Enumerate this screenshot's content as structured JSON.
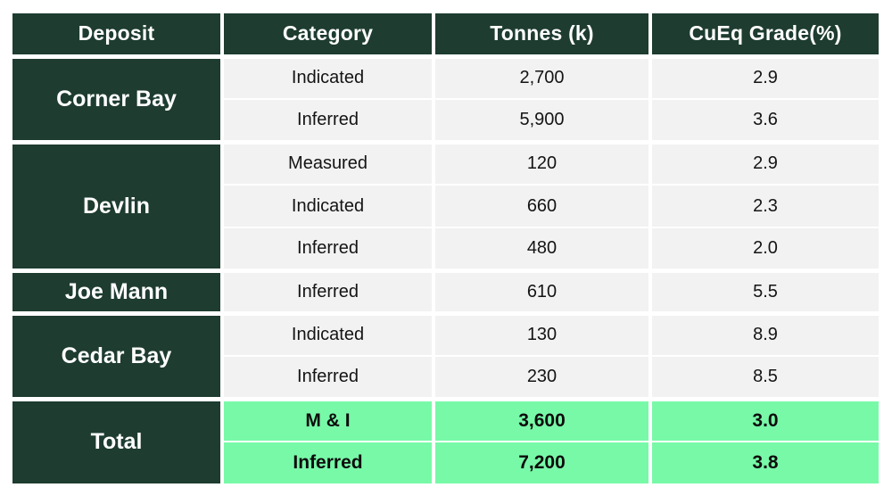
{
  "table": {
    "headers": [
      "Deposit",
      "Category",
      "Tonnes (k)",
      "CuEq Grade(%)"
    ],
    "groups": [
      {
        "deposit": "Corner Bay",
        "total": false,
        "rows": [
          {
            "category": "Indicated",
            "tonnes": "2,700",
            "grade": "2.9"
          },
          {
            "category": "Inferred",
            "tonnes": "5,900",
            "grade": "3.6"
          }
        ]
      },
      {
        "deposit": "Devlin",
        "total": false,
        "rows": [
          {
            "category": "Measured",
            "tonnes": "120",
            "grade": "2.9"
          },
          {
            "category": "Indicated",
            "tonnes": "660",
            "grade": "2.3"
          },
          {
            "category": "Inferred",
            "tonnes": "480",
            "grade": "2.0"
          }
        ]
      },
      {
        "deposit": "Joe Mann",
        "total": false,
        "rows": [
          {
            "category": "Inferred",
            "tonnes": "610",
            "grade": "5.5"
          }
        ]
      },
      {
        "deposit": "Cedar Bay",
        "total": false,
        "rows": [
          {
            "category": "Indicated",
            "tonnes": "130",
            "grade": "8.9"
          },
          {
            "category": "Inferred",
            "tonnes": "230",
            "grade": "8.5"
          }
        ]
      },
      {
        "deposit": "Total",
        "total": true,
        "rows": [
          {
            "category": "M & I",
            "tonnes": "3,600",
            "grade": "3.0"
          },
          {
            "category": "Inferred",
            "tonnes": "7,200",
            "grade": "3.8"
          }
        ]
      }
    ],
    "colors": {
      "dark_green": "#1e3c30",
      "mint_green": "#78f9a8",
      "row_gray": "#f2f2f2",
      "border_white": "#ffffff",
      "header_text": "#ffffff",
      "body_text": "#141414"
    }
  },
  "chart_data": {
    "type": "table",
    "columns": [
      "Deposit",
      "Category",
      "Tonnes (k)",
      "CuEq Grade(%)"
    ],
    "rows": [
      [
        "Corner Bay",
        "Indicated",
        2700,
        2.9
      ],
      [
        "Corner Bay",
        "Inferred",
        5900,
        3.6
      ],
      [
        "Devlin",
        "Measured",
        120,
        2.9
      ],
      [
        "Devlin",
        "Indicated",
        660,
        2.3
      ],
      [
        "Devlin",
        "Inferred",
        480,
        2.0
      ],
      [
        "Joe Mann",
        "Inferred",
        610,
        5.5
      ],
      [
        "Cedar Bay",
        "Indicated",
        130,
        8.9
      ],
      [
        "Cedar Bay",
        "Inferred",
        230,
        8.5
      ],
      [
        "Total",
        "M & I",
        3600,
        3.0
      ],
      [
        "Total",
        "Inferred",
        7200,
        3.8
      ]
    ]
  }
}
